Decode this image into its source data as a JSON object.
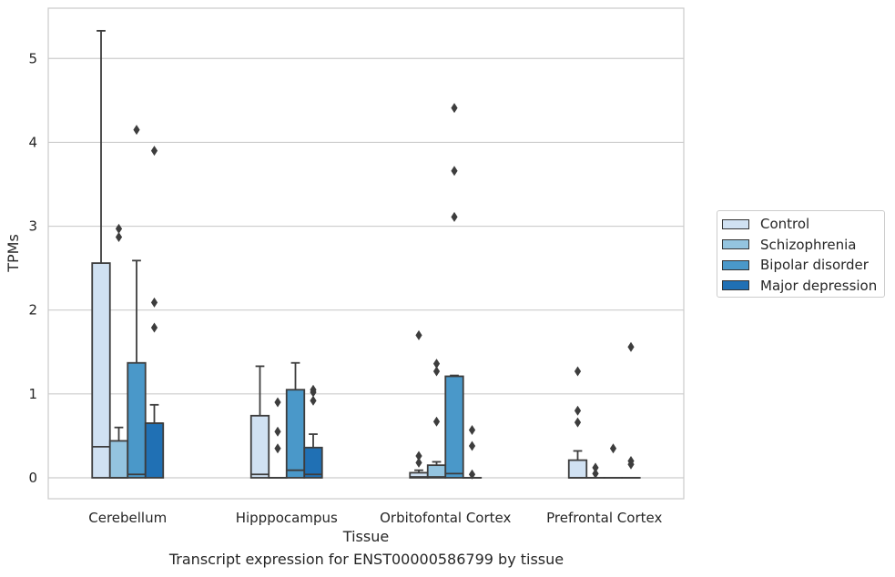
{
  "chart_data": {
    "type": "box",
    "title": "",
    "xlabel": "Tissue",
    "ylabel": "TPMs",
    "caption": "Transcript expression for ENST00000586799 by tissue",
    "ylim": [
      -0.25,
      5.6
    ],
    "yticks": [
      "0",
      "1",
      "2",
      "3",
      "4",
      "5"
    ],
    "grid": true,
    "legend_position": "right",
    "categories": [
      "Cerebellum",
      "Hipppocampus",
      "Orbitofontal Cortex",
      "Prefrontal Cortex"
    ],
    "series": [
      {
        "name": "Control",
        "color": "#d0e1f2",
        "boxes": [
          {
            "q1": 0,
            "median": 0.37,
            "q3": 2.56,
            "whisker_low": 0,
            "whisker_high": 5.33,
            "outliers": []
          },
          {
            "q1": 0,
            "median": 0.04,
            "q3": 0.74,
            "whisker_low": 0,
            "whisker_high": 1.33,
            "outliers": []
          },
          {
            "q1": 0,
            "median": 0.01,
            "q3": 0.06,
            "whisker_low": 0,
            "whisker_high": 0.09,
            "outliers": [
              1.7,
              0.26,
              0.18
            ]
          },
          {
            "q1": 0,
            "median": 0,
            "q3": 0.21,
            "whisker_low": 0,
            "whisker_high": 0.32,
            "outliers": [
              1.27,
              0.8,
              0.66
            ]
          }
        ]
      },
      {
        "name": "Schizophrenia",
        "color": "#94c4df",
        "boxes": [
          {
            "q1": 0,
            "median": 0,
            "q3": 0.44,
            "whisker_low": 0,
            "whisker_high": 0.6,
            "outliers": [
              2.97,
              2.87
            ]
          },
          {
            "q1": 0,
            "median": 0,
            "q3": 0,
            "whisker_low": 0,
            "whisker_high": 0,
            "outliers": [
              0.9,
              0.55,
              0.35
            ]
          },
          {
            "q1": 0,
            "median": 0.01,
            "q3": 0.15,
            "whisker_low": 0,
            "whisker_high": 0.19,
            "outliers": [
              1.36,
              1.27,
              0.67
            ]
          },
          {
            "q1": 0,
            "median": 0,
            "q3": 0,
            "whisker_low": 0,
            "whisker_high": 0,
            "outliers": [
              0.12,
              0.05
            ]
          }
        ]
      },
      {
        "name": "Bipolar disorder",
        "color": "#4a98c9",
        "boxes": [
          {
            "q1": 0,
            "median": 0.04,
            "q3": 1.37,
            "whisker_low": 0,
            "whisker_high": 2.59,
            "outliers": [
              4.15
            ]
          },
          {
            "q1": 0,
            "median": 0.09,
            "q3": 1.05,
            "whisker_low": 0,
            "whisker_high": 1.37,
            "outliers": []
          },
          {
            "q1": 0,
            "median": 0.05,
            "q3": 1.21,
            "whisker_low": 0,
            "whisker_high": 1.22,
            "outliers": [
              4.41,
              3.66,
              3.11
            ]
          },
          {
            "q1": 0,
            "median": 0,
            "q3": 0,
            "whisker_low": 0,
            "whisker_high": 0,
            "outliers": [
              0.35
            ]
          }
        ]
      },
      {
        "name": "Major depression",
        "color": "#2070b4",
        "boxes": [
          {
            "q1": 0,
            "median": 0.65,
            "q3": 0.65,
            "whisker_low": 0,
            "whisker_high": 0.87,
            "outliers": [
              3.9,
              2.09,
              1.79
            ]
          },
          {
            "q1": 0,
            "median": 0.04,
            "q3": 0.36,
            "whisker_low": 0,
            "whisker_high": 0.52,
            "outliers": [
              1.05,
              1.02,
              0.92
            ]
          },
          {
            "q1": 0,
            "median": 0,
            "q3": 0,
            "whisker_low": 0,
            "whisker_high": 0,
            "outliers": [
              0.57,
              0.38,
              0.04
            ]
          },
          {
            "q1": 0,
            "median": 0,
            "q3": 0,
            "whisker_low": 0,
            "whisker_high": 0,
            "outliers": [
              1.56,
              0.2,
              0.16
            ]
          }
        ]
      }
    ]
  }
}
